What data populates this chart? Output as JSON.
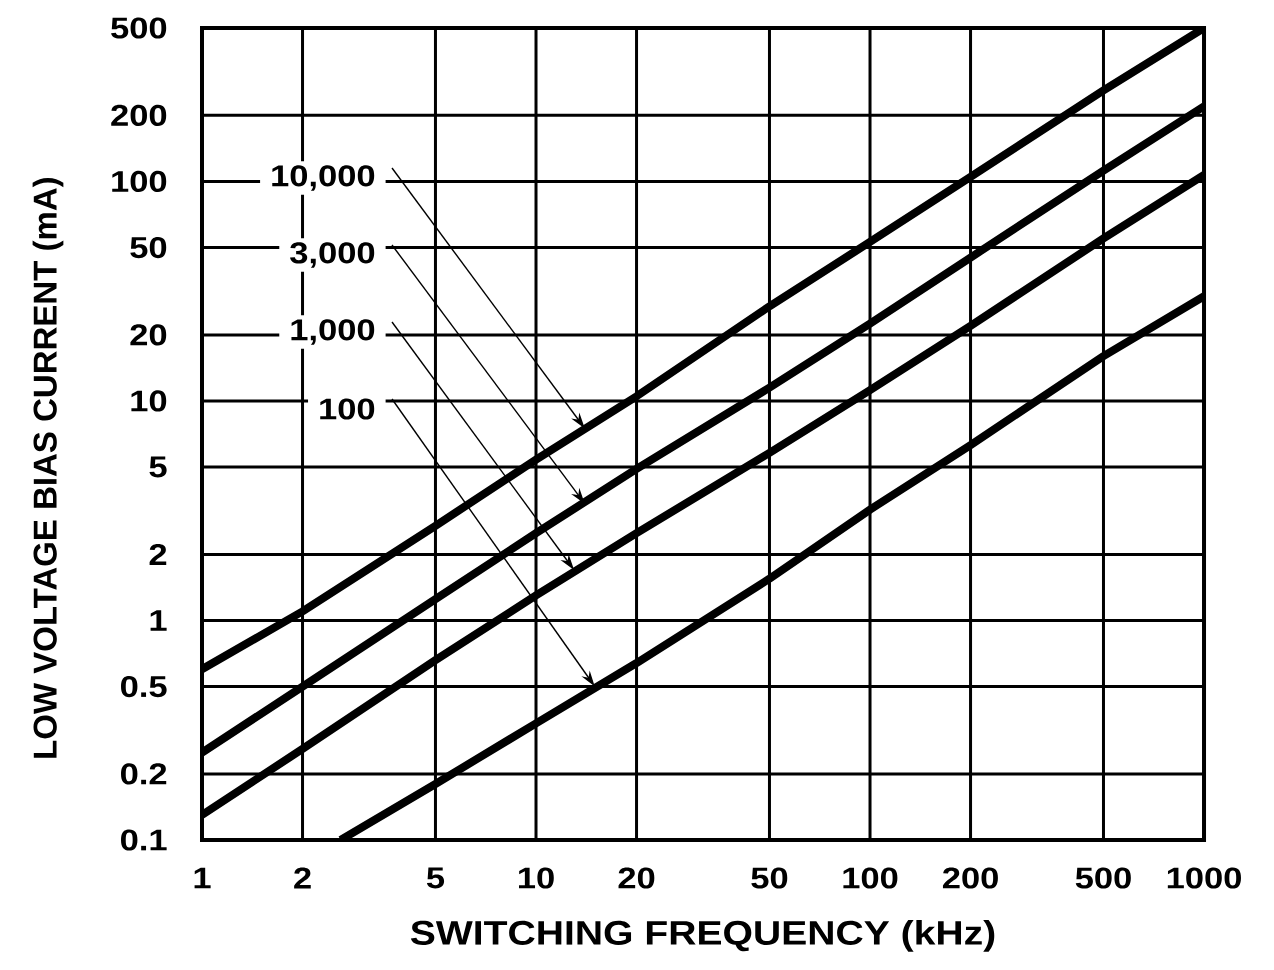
{
  "chart_data": {
    "type": "line",
    "xlabel": "SWITCHING FREQUENCY (kHz)",
    "ylabel": "LOW VOLTAGE BIAS CURRENT (mA)",
    "log": "xy",
    "xlim": [
      1,
      1000
    ],
    "ylim": [
      0.1,
      500
    ],
    "xticks": [
      1,
      2,
      5,
      10,
      20,
      50,
      100,
      200,
      500,
      1000
    ],
    "yticks": [
      0.1,
      0.2,
      0.5,
      1,
      2,
      5,
      10,
      20,
      50,
      100,
      200,
      500
    ],
    "grid": true,
    "marker": "none",
    "line_style": "solid",
    "series": [
      {
        "color": "#000000",
        "x": [
          1,
          2,
          5,
          10,
          20,
          50,
          100,
          200,
          500,
          1000
        ],
        "values": [
          0.6,
          1.1,
          2.7,
          5.4,
          10.5,
          27,
          53,
          105,
          260,
          500
        ]
      },
      {
        "color": "#000000",
        "x": [
          1,
          2,
          5,
          10,
          20,
          50,
          100,
          200,
          500,
          1000
        ],
        "values": [
          0.25,
          0.5,
          1.25,
          2.5,
          4.9,
          11.5,
          22.5,
          45,
          112,
          220
        ]
      },
      {
        "color": "#000000",
        "x": [
          1,
          2,
          5,
          10,
          20,
          50,
          100,
          200,
          500,
          1000
        ],
        "values": [
          0.13,
          0.26,
          0.66,
          1.3,
          2.5,
          5.8,
          11.2,
          22,
          55,
          107
        ]
      },
      {
        "color": "#000000",
        "x": [
          2.6,
          5,
          10,
          20,
          50,
          100,
          200,
          500,
          1000
        ],
        "values": [
          0.1,
          0.18,
          0.34,
          0.64,
          1.55,
          3.2,
          6.3,
          16,
          30
        ]
      }
    ],
    "annotations": [
      {
        "text": "10,000",
        "x": 14,
        "y": 7.5
      },
      {
        "text": "3,000",
        "x": 14,
        "y": 3.4
      },
      {
        "text": "1,000",
        "x": 13,
        "y": 1.7
      },
      {
        "text": "100",
        "x": 15,
        "y": 0.5
      }
    ]
  }
}
